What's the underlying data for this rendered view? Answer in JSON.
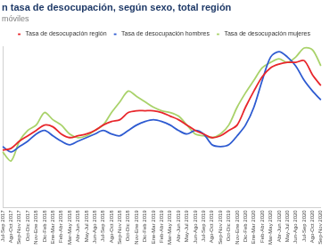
{
  "chart_data": {
    "type": "line",
    "title": "n tasa de desocupación, según sexo, total región",
    "subtitle": "móviles",
    "categories": [
      "Jul-Sep 2017",
      "Ago-Oct 2017",
      "Sep-Nov 2017",
      "Oct-Dic 2017",
      "Nov-Ene 2018",
      "Dic-Feb 2018",
      "Ene-Mar 2018",
      "Feb-Abr 2018",
      "Mar-May 2018",
      "Abr-Jun 2018",
      "May-Jul 2018",
      "Jun-Ago 2018",
      "Jul-Sep 2018",
      "Ago-Oct 2018",
      "Sep-Nov 2018",
      "Oct-Dic 2018",
      "Nov-Ene 2019",
      "Dic-Feb 2019",
      "Ene-Mar 2019",
      "Feb-Abr 2019",
      "Mar-May 2019",
      "Abr-Jun 2019",
      "May-Jul 2019",
      "Jun-Ago 2019",
      "Jul-Sep 2019",
      "Ago-Oct 2019",
      "Sep-Nov 2019",
      "Oct-Dic 2019",
      "Nov-Ene 2020",
      "Dic-Feb 2020",
      "Ene-Mar 2020",
      "Feb-Abr 2020",
      "Mar-May 2020",
      "Abr-Jun 2020",
      "May-Jul 2020",
      "Jun-Ago 2020",
      "Jul-Sep 2020",
      "Ago-Oct 2020",
      "Sep-Nov 2020"
    ],
    "series": [
      {
        "name": "Tasa de desocupación región",
        "color": "#e8262b",
        "marker": "none",
        "line_style": "solid",
        "values": [
          9.2,
          9.3,
          9.7,
          10.0,
          10.3,
          10.6,
          10.5,
          10.1,
          9.9,
          10.0,
          10.1,
          10.3,
          10.6,
          10.8,
          10.9,
          11.3,
          11.4,
          11.4,
          11.4,
          11.3,
          11.1,
          10.9,
          10.6,
          10.3,
          10.1,
          9.9,
          10.0,
          10.3,
          10.6,
          11.6,
          12.5,
          13.3,
          13.8,
          14.0,
          14.1,
          14.1,
          14.2,
          13.4,
          12.8
        ]
      },
      {
        "name": "Tasa de desocupación hombres",
        "color": "#2e5bd1",
        "marker": "none",
        "line_style": "solid",
        "values": [
          9.4,
          9.1,
          9.4,
          9.7,
          10.1,
          10.3,
          10.0,
          9.7,
          9.5,
          9.7,
          9.9,
          10.1,
          10.3,
          10.1,
          10.0,
          10.3,
          10.6,
          10.8,
          10.9,
          10.8,
          10.6,
          10.3,
          10.1,
          10.3,
          10.1,
          9.5,
          9.4,
          9.5,
          10.0,
          10.6,
          11.6,
          13.1,
          14.4,
          14.7,
          14.4,
          13.9,
          13.1,
          12.5,
          12.0
        ]
      },
      {
        "name": "Tasa de desocupación mujeres",
        "color": "#a9d26a",
        "marker": "none",
        "line_style": "solid",
        "values": [
          9.1,
          8.6,
          9.7,
          10.3,
          10.6,
          11.3,
          10.9,
          10.6,
          10.1,
          9.9,
          10.0,
          10.3,
          10.6,
          11.3,
          11.9,
          12.5,
          12.2,
          11.9,
          11.6,
          11.4,
          11.3,
          11.1,
          10.6,
          10.1,
          10.0,
          9.9,
          10.1,
          10.6,
          11.6,
          12.4,
          13.1,
          13.8,
          14.1,
          14.3,
          14.1,
          14.4,
          14.9,
          14.8,
          13.9
        ]
      }
    ],
    "ylim": [
      6,
      15
    ],
    "grid": false,
    "legend": "top",
    "tick_labels": "x"
  }
}
